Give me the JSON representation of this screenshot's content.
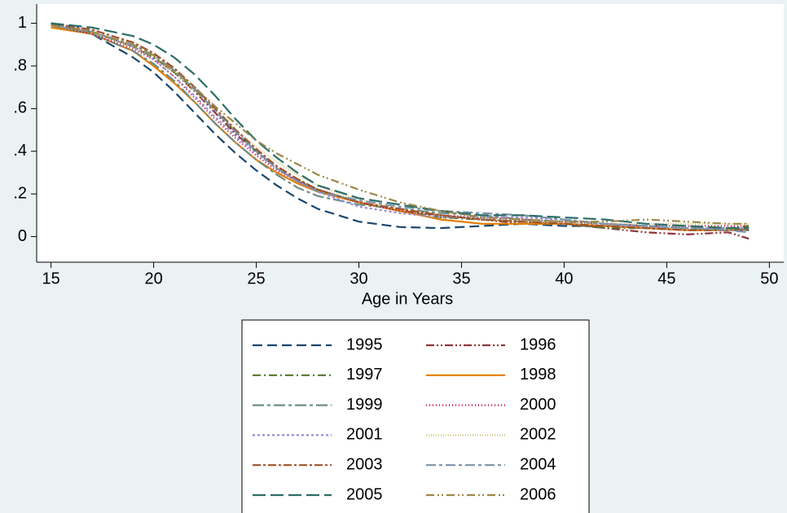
{
  "chart_data": {
    "type": "line",
    "x_label": "Age in Years",
    "x": [
      15,
      17,
      19,
      20,
      21,
      22,
      23,
      24,
      25,
      26,
      27,
      28,
      30,
      32,
      34,
      36,
      38,
      40,
      42,
      44,
      46,
      48,
      49
    ],
    "xlim": [
      14.3,
      50.7
    ],
    "xticks": [
      15,
      20,
      25,
      30,
      35,
      40,
      45,
      50
    ],
    "ylim": [
      -0.12,
      1.09
    ],
    "yticks": [
      {
        "value": 0,
        "label": "0"
      },
      {
        "value": 0.2,
        "label": ".2"
      },
      {
        "value": 0.4,
        "label": ".4"
      },
      {
        "value": 0.6,
        "label": ".6"
      },
      {
        "value": 0.8,
        "label": ".8"
      },
      {
        "value": 1,
        "label": "1"
      }
    ],
    "legend_position": "bottom",
    "legend_columns": 2,
    "series": [
      {
        "name": "1995",
        "color": "#1a476f",
        "dash": "12,6",
        "values": [
          1.0,
          0.95,
          0.84,
          0.77,
          0.68,
          0.58,
          0.48,
          0.39,
          0.31,
          0.24,
          0.18,
          0.13,
          0.07,
          0.045,
          0.04,
          0.05,
          0.06,
          0.05,
          0.05,
          0.04,
          0.03,
          0.03,
          0.03
        ]
      },
      {
        "name": "1996",
        "color": "#90353b",
        "dash": "10,3,2,3,2,3",
        "values": [
          0.99,
          0.96,
          0.89,
          0.84,
          0.77,
          0.68,
          0.58,
          0.48,
          0.4,
          0.32,
          0.26,
          0.22,
          0.16,
          0.12,
          0.1,
          0.08,
          0.06,
          0.06,
          0.04,
          0.02,
          0.01,
          0.02,
          -0.01
        ]
      },
      {
        "name": "1997",
        "color": "#55752f",
        "dash": "10,4,2,4",
        "values": [
          1.0,
          0.96,
          0.89,
          0.84,
          0.77,
          0.69,
          0.59,
          0.49,
          0.4,
          0.33,
          0.27,
          0.22,
          0.16,
          0.12,
          0.09,
          0.08,
          0.07,
          0.06,
          0.04,
          0.04,
          0.03,
          0.04,
          0.05
        ]
      },
      {
        "name": "1998",
        "color": "#e37e00",
        "dash": "none",
        "values": [
          0.98,
          0.95,
          0.87,
          0.8,
          0.72,
          0.63,
          0.53,
          0.44,
          0.36,
          0.3,
          0.25,
          0.21,
          0.16,
          0.12,
          0.08,
          0.06,
          0.06,
          0.06,
          0.05,
          0.04,
          0.03,
          0.03,
          0.04
        ]
      },
      {
        "name": "1999",
        "color": "#6e8e84",
        "dash": "14,4,4,4",
        "values": [
          0.99,
          0.95,
          0.87,
          0.81,
          0.73,
          0.63,
          0.53,
          0.44,
          0.36,
          0.29,
          0.23,
          0.19,
          0.15,
          0.13,
          0.11,
          0.1,
          0.08,
          0.07,
          0.06,
          0.05,
          0.04,
          0.04,
          0.03
        ]
      },
      {
        "name": "2000",
        "color": "#c10534",
        "dash": "1,3",
        "values": [
          0.99,
          0.95,
          0.88,
          0.83,
          0.75,
          0.65,
          0.55,
          0.46,
          0.38,
          0.31,
          0.26,
          0.22,
          0.16,
          0.12,
          0.1,
          0.09,
          0.08,
          0.07,
          0.06,
          0.05,
          0.05,
          0.05,
          0.05
        ]
      },
      {
        "name": "2001",
        "color": "#938dd2",
        "dash": "3,3",
        "values": [
          1.0,
          0.96,
          0.89,
          0.83,
          0.75,
          0.66,
          0.56,
          0.47,
          0.39,
          0.32,
          0.26,
          0.21,
          0.14,
          0.11,
          0.09,
          0.09,
          0.09,
          0.08,
          0.06,
          0.04,
          0.04,
          0.04,
          0.04
        ]
      },
      {
        "name": "2002",
        "color": "#cac27e",
        "dash": "1,2",
        "values": [
          0.99,
          0.96,
          0.89,
          0.84,
          0.77,
          0.68,
          0.59,
          0.5,
          0.42,
          0.35,
          0.29,
          0.24,
          0.17,
          0.13,
          0.1,
          0.08,
          0.07,
          0.07,
          0.06,
          0.06,
          0.06,
          0.06,
          0.06
        ]
      },
      {
        "name": "2003",
        "color": "#a0522d",
        "dash": "10,3,3,3",
        "values": [
          1.0,
          0.97,
          0.91,
          0.86,
          0.79,
          0.7,
          0.6,
          0.5,
          0.41,
          0.33,
          0.27,
          0.22,
          0.16,
          0.13,
          0.1,
          0.08,
          0.07,
          0.06,
          0.05,
          0.04,
          0.03,
          0.03,
          0.03
        ]
      },
      {
        "name": "2004",
        "color": "#7b92a8",
        "dash": "12,4,4,4",
        "values": [
          0.99,
          0.96,
          0.9,
          0.85,
          0.78,
          0.69,
          0.59,
          0.49,
          0.4,
          0.32,
          0.26,
          0.21,
          0.17,
          0.14,
          0.12,
          0.11,
          0.1,
          0.08,
          0.06,
          0.05,
          0.04,
          0.03,
          0.02
        ]
      },
      {
        "name": "2005",
        "color": "#2d6d66",
        "dash": "16,6",
        "values": [
          1.0,
          0.98,
          0.94,
          0.9,
          0.84,
          0.76,
          0.66,
          0.55,
          0.45,
          0.37,
          0.3,
          0.24,
          0.18,
          0.15,
          0.12,
          0.1,
          0.1,
          0.09,
          0.08,
          0.06,
          0.05,
          0.04,
          0.04
        ]
      },
      {
        "name": "2006",
        "color": "#9c8847",
        "dash": "10,4,2,3,2,4",
        "values": [
          0.99,
          0.96,
          0.9,
          0.85,
          0.78,
          0.7,
          0.61,
          0.53,
          0.45,
          0.39,
          0.34,
          0.29,
          0.22,
          0.16,
          0.12,
          0.09,
          0.08,
          0.07,
          0.07,
          0.08,
          0.07,
          0.06,
          0.06
        ]
      }
    ]
  }
}
